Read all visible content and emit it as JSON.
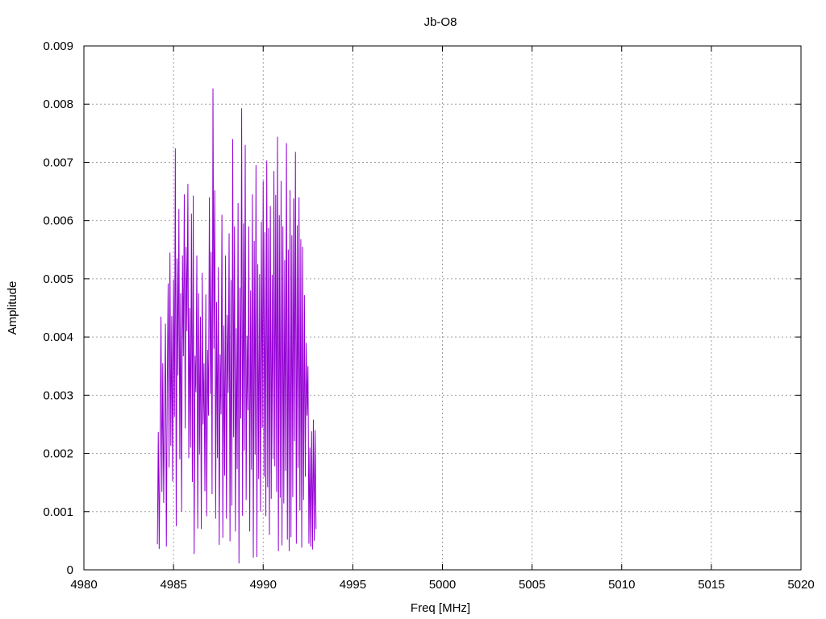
{
  "chart_data": {
    "type": "line",
    "title": "Jb-O8",
    "xlabel": "Freq [MHz]",
    "ylabel": "Amplitude",
    "xlim": [
      4980,
      5020
    ],
    "ylim": [
      0,
      0.009
    ],
    "xticks": [
      "4980",
      "4985",
      "4990",
      "4995",
      "5000",
      "5005",
      "5010",
      "5015",
      "5020"
    ],
    "yticks": [
      "0",
      "0.001",
      "0.002",
      "0.003",
      "0.004",
      "0.005",
      "0.006",
      "0.007",
      "0.008",
      "0.009"
    ],
    "grid": true,
    "legend": "none",
    "series": [
      {
        "color": "#9400d3",
        "x_start": 4984.1,
        "x_step": 0.05,
        "values": [
          0.00044,
          0.00237,
          0.00036,
          0.00205,
          0.00435,
          0.00134,
          0.00355,
          0.00115,
          0.00278,
          0.00423,
          0.0004,
          0.00318,
          0.00492,
          0.00176,
          0.00545,
          0.00213,
          0.00436,
          0.00152,
          0.00498,
          0.00263,
          0.00724,
          0.00075,
          0.00535,
          0.00334,
          0.0062,
          0.0019,
          0.00475,
          0.001,
          0.0054,
          0.00367,
          0.00645,
          0.00243,
          0.00555,
          0.0041,
          0.00663,
          0.00192,
          0.0045,
          0.0021,
          0.00612,
          0.00151,
          0.00643,
          0.00027,
          0.00368,
          0.00305,
          0.0054,
          0.00071,
          0.00475,
          0.00198,
          0.00435,
          0.0007,
          0.0051,
          0.0025,
          0.00355,
          0.00135,
          0.00473,
          0.00092,
          0.00378,
          0.00265,
          0.0064,
          0.00302,
          0.00546,
          0.0013,
          0.00827,
          0.0038,
          0.00652,
          0.00088,
          0.0046,
          0.00192,
          0.0052,
          0.00043,
          0.0037,
          0.00267,
          0.0061,
          0.00055,
          0.0042,
          0.00162,
          0.0054,
          0.00088,
          0.00438,
          0.00304,
          0.00578,
          0.00049,
          0.00498,
          0.0011,
          0.0074,
          0.00228,
          0.0059,
          0.00066,
          0.00415,
          0.00173,
          0.0063,
          0.00011,
          0.00485,
          0.0026,
          0.00793,
          0.00093,
          0.00595,
          0.00205,
          0.0073,
          0.0012,
          0.00402,
          0.00274,
          0.0059,
          0.00066,
          0.0048,
          0.00172,
          0.00645,
          0.00021,
          0.00565,
          0.00198,
          0.00695,
          0.00022,
          0.00525,
          0.00156,
          0.00508,
          0.001,
          0.00598,
          0.00244,
          0.00668,
          0.0016,
          0.0058,
          0.00092,
          0.00703,
          0.00142,
          0.00587,
          0.0006,
          0.00625,
          0.00122,
          0.00507,
          0.0019,
          0.00685,
          0.00178,
          0.00644,
          0.00134,
          0.00744,
          0.00032,
          0.00609,
          0.00124,
          0.00668,
          0.00042,
          0.0059,
          0.00114,
          0.00532,
          0.0017,
          0.00733,
          0.00052,
          0.0055,
          0.00032,
          0.00652,
          0.00056,
          0.00575,
          0.00125,
          0.00638,
          0.00221,
          0.00718,
          0.00045,
          0.00592,
          0.00175,
          0.0064,
          0.00102,
          0.00568,
          0.00038,
          0.00555,
          0.0012,
          0.00472,
          0.0016,
          0.0039,
          0.00265,
          0.0035,
          0.00045,
          0.0021,
          0.0004,
          0.00238,
          0.00035,
          0.00258,
          0.0005,
          0.0024,
          0.0007
        ]
      }
    ]
  }
}
